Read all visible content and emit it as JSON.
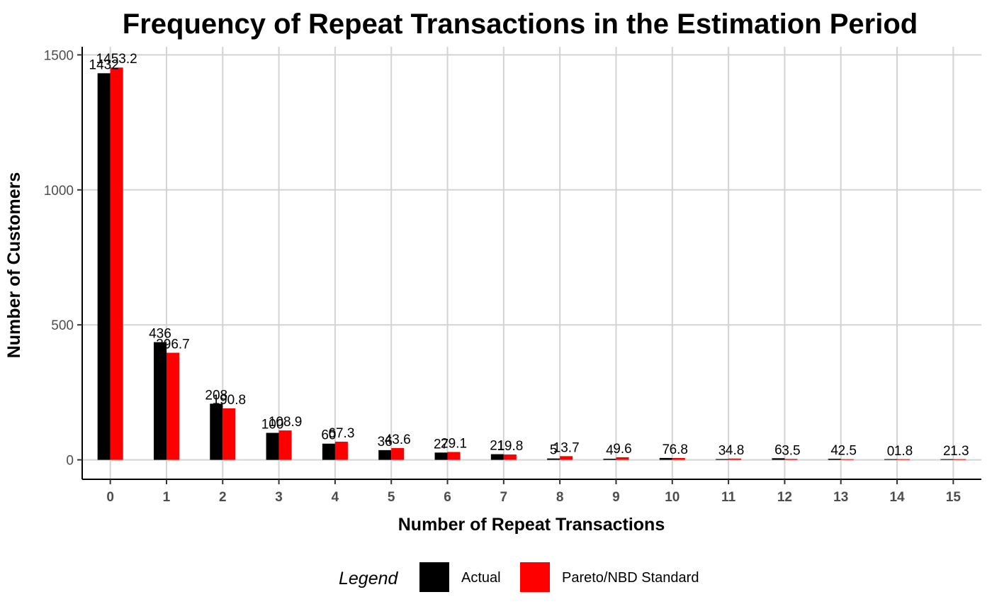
{
  "chart_data": {
    "type": "bar",
    "title": "Frequency of Repeat Transactions in the Estimation Period",
    "xlabel": "Number of Repeat Transactions",
    "ylabel": "Number of Customers",
    "categories": [
      "0",
      "1",
      "2",
      "3",
      "4",
      "5",
      "6",
      "7",
      "8",
      "9",
      "10",
      "11",
      "12",
      "13",
      "14",
      "15"
    ],
    "ylim": [
      -72,
      1530
    ],
    "yticks": [
      0,
      500,
      1000,
      1500
    ],
    "grid": true,
    "legend_position": "bottom",
    "legend_title": "Legend",
    "series": [
      {
        "name": "Actual",
        "color": "#000000",
        "values": [
          1432,
          436,
          208,
          100,
          60,
          36,
          27,
          21,
          5,
          4,
          7,
          3,
          6,
          4,
          0,
          2
        ],
        "labels": [
          "1432",
          "436",
          "208",
          "100",
          "60",
          "36",
          "27",
          "21",
          "5",
          "4",
          "7",
          "3",
          "6",
          "4",
          "0",
          "2"
        ]
      },
      {
        "name": "Pareto/NBD Standard",
        "color": "#ff0000",
        "values": [
          1453.2,
          396.7,
          190.8,
          108.9,
          67.3,
          43.6,
          29.1,
          19.8,
          13.7,
          9.6,
          6.8,
          4.8,
          3.5,
          2.5,
          1.8,
          1.3
        ],
        "labels": [
          "1453.2",
          "396.7",
          "190.8",
          "108.9",
          "67.3",
          "43.6",
          "29.1",
          "19.8",
          "13.7",
          "9.6",
          "6.8",
          "4.8",
          "3.5",
          "2.5",
          "1.8",
          "1.3"
        ]
      }
    ]
  }
}
